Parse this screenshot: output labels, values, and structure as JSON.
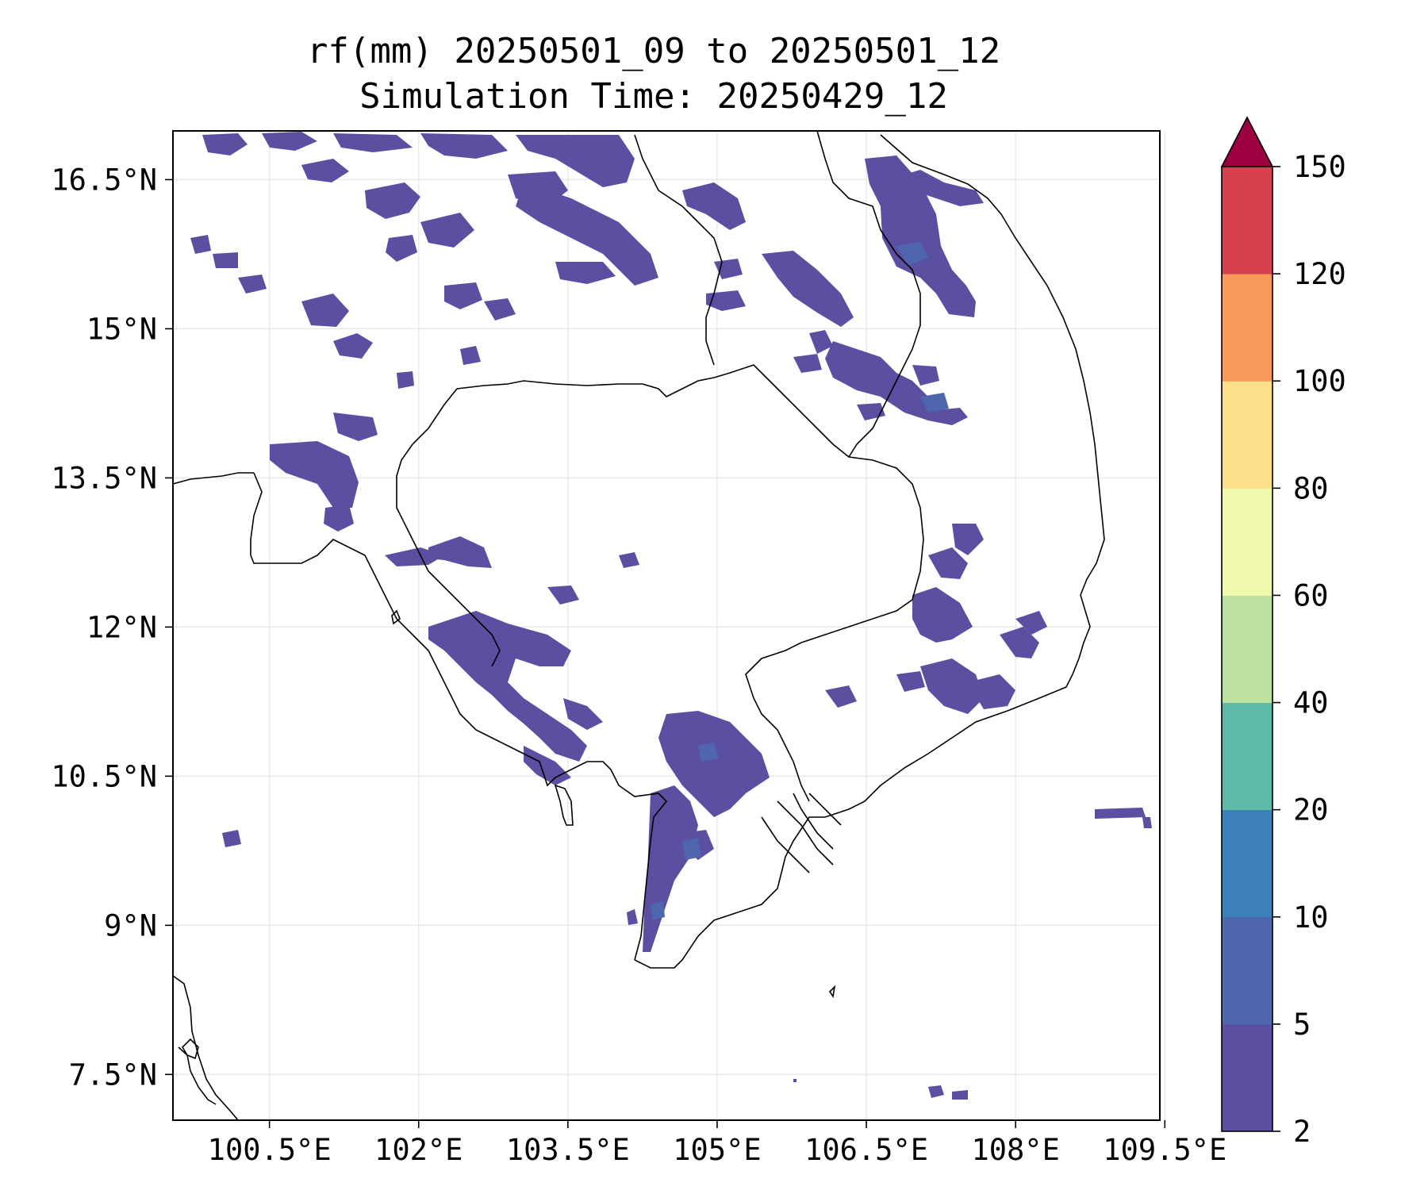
{
  "title": {
    "line1": "rf(mm) 20250501_09 to 20250501_12",
    "line2": "Simulation Time: 20250429_12"
  },
  "map": {
    "lat_labels": [
      "16.5°N",
      "15°N",
      "13.5°N",
      "12°N",
      "10.5°N",
      "9°N",
      "7.5°N"
    ],
    "lat_values": [
      16.5,
      15,
      13.5,
      12,
      10.5,
      9,
      7.5
    ],
    "lon_labels": [
      "100.5°E",
      "102°E",
      "103.5°E",
      "105°E",
      "106.5°E",
      "108°E",
      "109.5°E"
    ],
    "lon_values": [
      100.5,
      102,
      103.5,
      105,
      106.5,
      108,
      109.5
    ],
    "lon_range": [
      99.53,
      109.45
    ],
    "lat_range": [
      7.04,
      16.99
    ],
    "grid": true,
    "coastline_color": "#000000"
  },
  "colorbar": {
    "levels": [
      "2",
      "5",
      "10",
      "20",
      "40",
      "60",
      "80",
      "100",
      "120",
      "150"
    ],
    "colors": [
      "#5a4fa0",
      "#4f65ae",
      "#3b7fbb",
      "#5fbaa8",
      "#bde2a0",
      "#f1f9ae",
      "#fde08b",
      "#f99a5a",
      "#d7404e"
    ],
    "extend_color": "#9e0142",
    "extend": "max"
  }
}
